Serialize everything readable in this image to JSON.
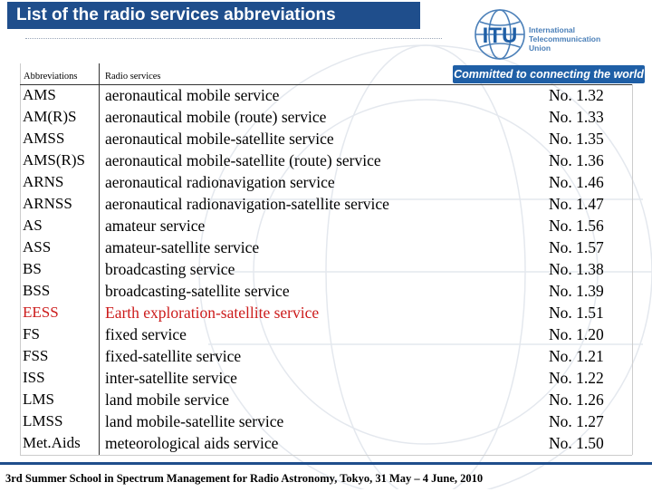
{
  "slide": {
    "title": "List of the radio services abbreviations"
  },
  "logo": {
    "mark": "ITU",
    "org_line1": "International",
    "org_line2": "Telecommunication",
    "org_line3": "Union",
    "tagline": "Committed to connecting the world",
    "icon": "itu-globe-icon",
    "accent_color": "#1f5fa6"
  },
  "table": {
    "headers": {
      "abbreviations": "Abbreviations",
      "radio_services": "Radio services"
    },
    "rows": [
      {
        "abbr": "AMS",
        "service": "aeronautical mobile service",
        "ref_prefix": "No.",
        "ref_num": "1.32"
      },
      {
        "abbr": "AM(R)S",
        "service": "aeronautical mobile (route) service",
        "ref_prefix": "No.",
        "ref_num": "1.33"
      },
      {
        "abbr": "AMSS",
        "service": "aeronautical mobile-satellite service",
        "ref_prefix": "No.",
        "ref_num": "1.35"
      },
      {
        "abbr": "AMS(R)S",
        "service": "aeronautical mobile-satellite (route) service",
        "ref_prefix": "No.",
        "ref_num": "1.36"
      },
      {
        "abbr": "ARNS",
        "service": "aeronautical radionavigation service",
        "ref_prefix": "No.",
        "ref_num": "1.46"
      },
      {
        "abbr": "ARNSS",
        "service": "aeronautical radionavigation-satellite service",
        "ref_prefix": "No.",
        "ref_num": "1.47"
      },
      {
        "abbr": "AS",
        "service": "amateur service",
        "ref_prefix": "No.",
        "ref_num": "1.56"
      },
      {
        "abbr": "ASS",
        "service": "amateur-satellite service",
        "ref_prefix": "No.",
        "ref_num": "1.57"
      },
      {
        "abbr": "BS",
        "service": "broadcasting service",
        "ref_prefix": "No.",
        "ref_num": "1.38"
      },
      {
        "abbr": "BSS",
        "service": "broadcasting-satellite service",
        "ref_prefix": "No.",
        "ref_num": "1.39"
      },
      {
        "abbr": "EESS",
        "service": "Earth exploration-satellite service",
        "ref_prefix": "No.",
        "ref_num": "1.51"
      },
      {
        "abbr": "FS",
        "service": "fixed service",
        "ref_prefix": "No.",
        "ref_num": "1.20"
      },
      {
        "abbr": "FSS",
        "service": "fixed-satellite service",
        "ref_prefix": "No.",
        "ref_num": "1.21"
      },
      {
        "abbr": "ISS",
        "service": "inter-satellite service",
        "ref_prefix": "No.",
        "ref_num": "1.22"
      },
      {
        "abbr": "LMS",
        "service": "land mobile service",
        "ref_prefix": "No.",
        "ref_num": "1.26"
      },
      {
        "abbr": "LMSS",
        "service": "land mobile-satellite service",
        "ref_prefix": "No.",
        "ref_num": "1.27"
      },
      {
        "abbr": "Met.Aids",
        "service": "meteorological aids service",
        "ref_prefix": "No.",
        "ref_num": "1.50"
      }
    ],
    "highlight_color": "#cc1b1b"
  },
  "footer": {
    "text": "3rd Summer School in Spectrum Management for Radio Astronomy, Tokyo, 31 May – 4 June, 2010"
  }
}
